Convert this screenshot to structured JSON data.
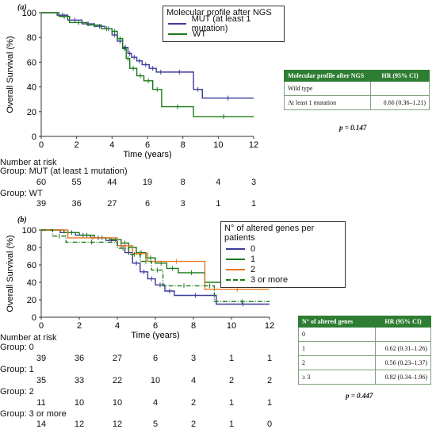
{
  "panel_a": {
    "label": "(a)",
    "legend_title": "Molecular profile after NGS",
    "hr_table": {
      "headers": [
        "Molecular profile after NGS",
        "HR (95% CI)"
      ],
      "rows": [
        {
          "label": "Wild type",
          "hr": ""
        },
        {
          "label": "At least 1 mutation",
          "hr": "0.66 (0.36–1.21)"
        }
      ]
    },
    "p_value": "p = 0.147",
    "risk_table": {
      "title": "Number at risk",
      "groups": [
        {
          "label": "Group: MUT (at least 1 mutation)",
          "counts": [
            60,
            55,
            44,
            19,
            8,
            4,
            3
          ]
        },
        {
          "label": "Group: WT",
          "counts": [
            39,
            36,
            27,
            6,
            3,
            1,
            1
          ]
        }
      ]
    }
  },
  "panel_b": {
    "label": "(b)",
    "legend_title": "N° of altered genes per patients",
    "hr_table": {
      "headers": [
        "N° of altered genes",
        "HR (95% CI)"
      ],
      "rows": [
        {
          "label": "0",
          "hr": ""
        },
        {
          "label": "1",
          "hr": "0.62 (0.31–1.26)"
        },
        {
          "label": "2",
          "hr": "0.56 (0.23–1.37)"
        },
        {
          "label": "≥ 3",
          "hr": "0.82 (0.34–1.96)"
        }
      ]
    },
    "p_value": "p = 0.447",
    "risk_table": {
      "title": "Number at risk",
      "groups": [
        {
          "label": "Group: 0",
          "counts": [
            39,
            36,
            27,
            6,
            3,
            1,
            1
          ]
        },
        {
          "label": "Group: 1",
          "counts": [
            35,
            33,
            22,
            10,
            4,
            2,
            2
          ]
        },
        {
          "label": "Group: 2",
          "counts": [
            11,
            10,
            10,
            4,
            2,
            1,
            1
          ]
        },
        {
          "label": "Group: 3 or more",
          "counts": [
            14,
            12,
            12,
            5,
            2,
            1,
            0
          ]
        }
      ]
    }
  },
  "chart_data": [
    {
      "type": "line",
      "subtype": "kaplan-meier-step",
      "xlabel": "Time (years)",
      "ylabel": "Overall Survival (%)",
      "xlim": [
        0,
        12
      ],
      "ylim": [
        0,
        100
      ],
      "xticks": [
        0,
        2,
        4,
        6,
        8,
        10,
        12
      ],
      "yticks": [
        0,
        20,
        40,
        60,
        80,
        100
      ],
      "legend_position": "top-right",
      "series": [
        {
          "name": "MUT (at least 1 mutation)",
          "color": "#3b3b9a",
          "x": [
            0,
            0.9,
            1.5,
            2.3,
            3.0,
            3.6,
            4.0,
            4.3,
            4.6,
            4.9,
            5.1,
            5.4,
            5.7,
            6.1,
            6.5,
            7.0,
            8.6,
            9.1,
            12.0
          ],
          "y": [
            100,
            98,
            94,
            91,
            89,
            87,
            82,
            77,
            72,
            67,
            64,
            61,
            58,
            55,
            52,
            52,
            38,
            31,
            31
          ]
        },
        {
          "name": "WT",
          "color": "#1a7a1a",
          "x": [
            0,
            1.0,
            1.6,
            2.6,
            3.4,
            4.0,
            4.3,
            4.6,
            4.8,
            5.0,
            5.4,
            5.8,
            6.3,
            6.8,
            8.6,
            12.0
          ],
          "y": [
            100,
            97,
            92,
            90,
            87,
            85,
            79,
            71,
            63,
            55,
            49,
            45,
            38,
            24,
            16,
            16
          ]
        }
      ]
    },
    {
      "type": "line",
      "subtype": "kaplan-meier-step",
      "xlabel": "Time (years)",
      "ylabel": "Overall Survival (%)",
      "xlim": [
        0,
        12
      ],
      "ylim": [
        0,
        100
      ],
      "xticks": [
        0,
        2,
        4,
        6,
        8,
        10,
        12
      ],
      "yticks": [
        0,
        20,
        40,
        60,
        80,
        100
      ],
      "legend_position": "top-right",
      "series": [
        {
          "name": "0",
          "color": "#3b3b9a",
          "dash": "",
          "x": [
            0,
            1.0,
            1.8,
            2.6,
            3.4,
            4.0,
            4.4,
            4.8,
            5.2,
            5.6,
            6.0,
            6.5,
            7.0,
            9.2,
            12.0
          ],
          "y": [
            100,
            97,
            94,
            91,
            88,
            82,
            74,
            62,
            52,
            44,
            37,
            30,
            25,
            15,
            15
          ]
        },
        {
          "name": "1",
          "color": "#1a7a1a",
          "dash": "",
          "x": [
            0,
            1.2,
            2.0,
            2.8,
            3.6,
            4.2,
            4.6,
            5.0,
            5.5,
            6.0,
            6.6,
            7.2,
            8.6,
            12.0
          ],
          "y": [
            100,
            97,
            94,
            91,
            89,
            85,
            80,
            74,
            68,
            62,
            56,
            51,
            40,
            40
          ]
        },
        {
          "name": "2",
          "color": "#e87722",
          "dash": "",
          "x": [
            0,
            1.4,
            4.0,
            4.8,
            5.6,
            8.6,
            12.0
          ],
          "y": [
            100,
            91,
            82,
            73,
            64,
            32,
            32
          ]
        },
        {
          "name": "3 or more",
          "color": "#1a7a1a",
          "dash": "6,2,1,2",
          "x": [
            0,
            0.6,
            1.3,
            4.0,
            4.6,
            5.2,
            5.8,
            6.4,
            8.6,
            9.1,
            12.0
          ],
          "y": [
            100,
            93,
            86,
            79,
            72,
            64,
            54,
            36,
            36,
            18,
            18
          ]
        }
      ]
    }
  ]
}
